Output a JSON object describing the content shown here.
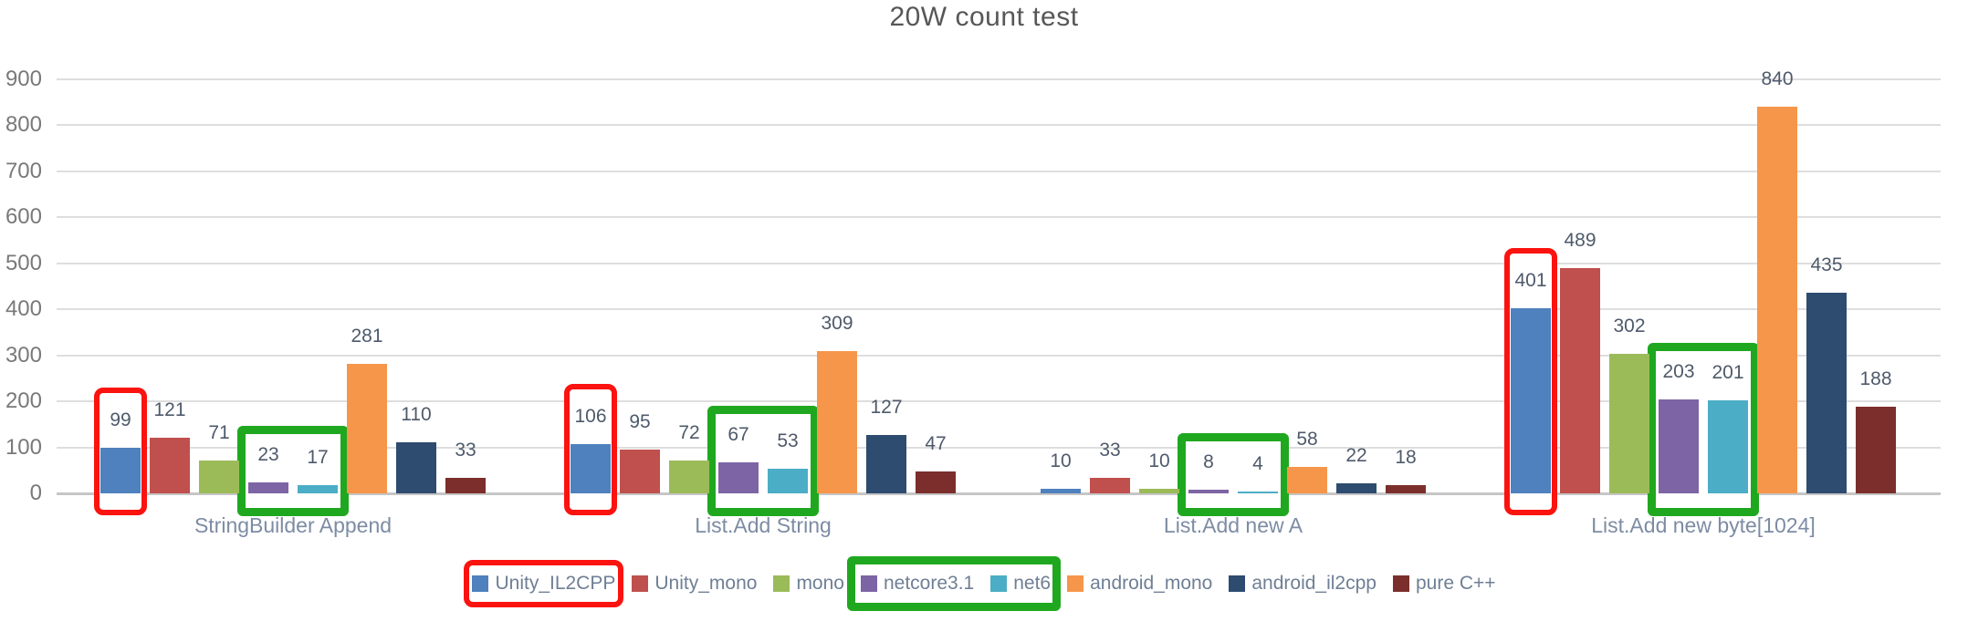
{
  "chart_data": {
    "type": "bar",
    "title": "20W count test",
    "categories": [
      "StringBuilder Append",
      "List.Add String",
      "List.Add new A",
      "List.Add new byte[1024]"
    ],
    "series": [
      {
        "name": "Unity_IL2CPP",
        "color": "#4e81bd",
        "values": [
          99,
          106,
          10,
          401
        ]
      },
      {
        "name": "Unity_mono",
        "color": "#c0504d",
        "values": [
          121,
          95,
          33,
          489
        ]
      },
      {
        "name": "mono",
        "color": "#9bbb59",
        "values": [
          71,
          72,
          10,
          302
        ]
      },
      {
        "name": "netcore3.1",
        "color": "#7d64a5",
        "values": [
          23,
          67,
          8,
          203
        ]
      },
      {
        "name": "net6",
        "color": "#4cadc6",
        "values": [
          17,
          53,
          4,
          201
        ]
      },
      {
        "name": "android_mono",
        "color": "#f6964a",
        "values": [
          281,
          309,
          58,
          840
        ]
      },
      {
        "name": "android_il2cpp",
        "color": "#2e4b70",
        "values": [
          110,
          127,
          22,
          435
        ]
      },
      {
        "name": "pure C++",
        "color": "#7b2e2b",
        "values": [
          33,
          47,
          18,
          188
        ]
      }
    ],
    "y_ticks": [
      0,
      100,
      200,
      300,
      400,
      500,
      600,
      700,
      800,
      900
    ],
    "ylim": [
      0,
      950
    ],
    "grid": true,
    "legend_position": "bottom"
  },
  "annotations": {
    "red_color": "#fb1310",
    "green_color": "#1fa81f",
    "bar_red": [
      {
        "category": 0,
        "series": [
          0
        ]
      },
      {
        "category": 1,
        "series": [
          0
        ]
      },
      {
        "category": 3,
        "series": [
          0
        ]
      }
    ],
    "bar_green": [
      {
        "category": 0,
        "series": [
          3,
          4
        ]
      },
      {
        "category": 1,
        "series": [
          3,
          4
        ]
      },
      {
        "category": 2,
        "series": [
          3,
          4
        ]
      },
      {
        "category": 3,
        "series": [
          3,
          4
        ]
      }
    ],
    "legend_red": [
      0
    ],
    "legend_green": [
      3,
      4
    ]
  }
}
